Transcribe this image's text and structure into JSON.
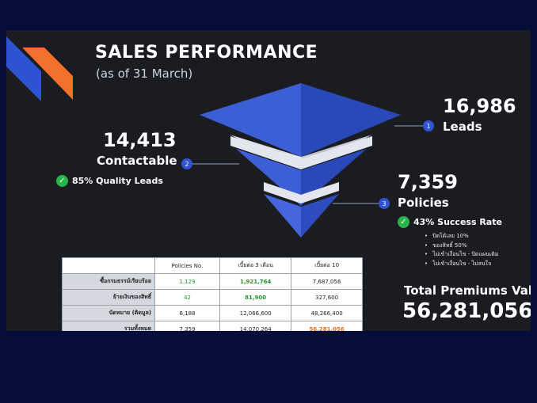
{
  "title": "SALES PERFORMANCE",
  "subtitle": "(as of 31 March)",
  "colors": {
    "background": "#1b1c22",
    "page": "#060d3a",
    "funnel_blue": "#3d5fd6",
    "funnel_light": "#6d8cf0",
    "accent_orange": "#f2702b",
    "check_green": "#29b34a",
    "highlight_orange": "#ef6c1a"
  },
  "chart_data": {
    "type": "funnel",
    "stages": [
      {
        "marker": "1",
        "name": "Leads",
        "value": 16986,
        "value_label": "16,986"
      },
      {
        "marker": "2",
        "name": "Contactable",
        "value": 14413,
        "value_label": "14,413",
        "note": "85% Quality Leads"
      },
      {
        "marker": "3",
        "name": "Policies",
        "value": 7359,
        "value_label": "7,359",
        "note": "43% Success Rate"
      }
    ]
  },
  "policies_breakdown": [
    "ปิดได้เลย 10%",
    "ของสิทธิ์ 50%",
    "ไม่เข้าเงื่อนไข - ปิดแผนเดิม",
    "ไม่เข้าเงื่อนไข - ไม่สนใจ"
  ],
  "total_premiums": {
    "label": "Total Premiums Value",
    "value": "56,281,056",
    "unit": "T"
  },
  "table": {
    "headers": [
      "",
      "Policies No.",
      "เบี้ยต่อ 3 เดือน",
      "เบี้ยต่อ 10"
    ],
    "rows": [
      [
        "ซื้อกรมธรรม์เรียบร้อย",
        "1,129",
        "1,921,764",
        "7,687,056"
      ],
      [
        "ย้ายเงินของสิทธิ์",
        "42",
        "81,900",
        "327,600"
      ],
      [
        "นัดหมาย (ติดมูล)",
        "6,188",
        "12,066,600",
        "48,266,400"
      ],
      [
        "รวมทั้งหมด",
        "7,359",
        "14,070,264",
        "56,281,056"
      ]
    ]
  }
}
